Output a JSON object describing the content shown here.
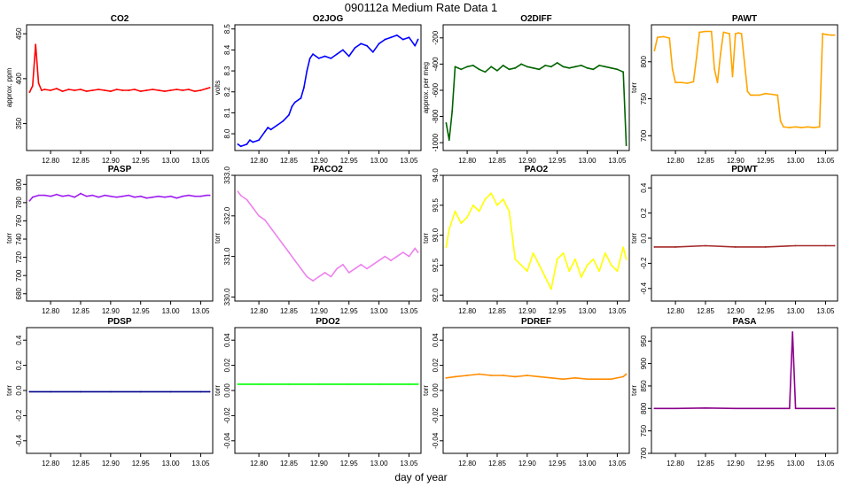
{
  "figure": {
    "title": "090112a   Medium Rate Data 1",
    "xlabel": "day of year"
  },
  "chart_data": [
    {
      "type": "line",
      "title": "CO2",
      "ylabel": "approx. ppm",
      "color": "#ff0000",
      "xlim": [
        12.76,
        13.07
      ],
      "ylim": [
        320,
        460
      ],
      "xticks": [
        "12.80",
        "12.85",
        "12.90",
        "12.95",
        "13.00",
        "13.05"
      ],
      "yticks": [
        "350",
        "400",
        "450"
      ],
      "x": [
        12.765,
        12.77,
        12.775,
        12.78,
        12.785,
        12.79,
        12.8,
        12.81,
        12.82,
        12.83,
        12.84,
        12.85,
        12.86,
        12.87,
        12.88,
        12.89,
        12.9,
        12.91,
        12.92,
        12.93,
        12.94,
        12.95,
        12.96,
        12.97,
        12.98,
        12.99,
        13.0,
        13.01,
        13.02,
        13.03,
        13.04,
        13.05,
        13.06,
        13.065
      ],
      "y": [
        385,
        392,
        438,
        395,
        387,
        388,
        387,
        389,
        386,
        388,
        387,
        388,
        386,
        387,
        388,
        387,
        386,
        388,
        387,
        387,
        388,
        386,
        387,
        388,
        387,
        386,
        387,
        388,
        387,
        388,
        386,
        387,
        389,
        390
      ]
    },
    {
      "type": "line",
      "title": "O2JOG",
      "ylabel": "volts",
      "color": "#0000ff",
      "xlim": [
        12.76,
        13.07
      ],
      "ylim": [
        7.92,
        8.52
      ],
      "xticks": [
        "12.80",
        "12.85",
        "12.90",
        "12.95",
        "13.00",
        "13.05"
      ],
      "yticks": [
        "8.0",
        "8.1",
        "8.2",
        "8.3",
        "8.4",
        "8.5"
      ],
      "x": [
        12.765,
        12.77,
        12.78,
        12.785,
        12.79,
        12.8,
        12.81,
        12.815,
        12.82,
        12.83,
        12.84,
        12.85,
        12.855,
        12.86,
        12.87,
        12.875,
        12.88,
        12.885,
        12.89,
        12.9,
        12.91,
        12.92,
        12.93,
        12.94,
        12.95,
        12.96,
        12.97,
        12.98,
        12.99,
        13.0,
        13.01,
        13.02,
        13.03,
        13.04,
        13.05,
        13.06,
        13.065
      ],
      "y": [
        7.95,
        7.94,
        7.95,
        7.97,
        7.96,
        7.97,
        8.01,
        8.03,
        8.02,
        8.04,
        8.06,
        8.09,
        8.13,
        8.15,
        8.17,
        8.22,
        8.3,
        8.36,
        8.38,
        8.36,
        8.37,
        8.36,
        8.38,
        8.4,
        8.37,
        8.41,
        8.43,
        8.42,
        8.39,
        8.43,
        8.45,
        8.46,
        8.47,
        8.45,
        8.46,
        8.42,
        8.45
      ]
    },
    {
      "type": "line",
      "title": "O2DIFF",
      "ylabel": "approx. per meg",
      "color": "#006400",
      "xlim": [
        12.76,
        13.07
      ],
      "ylim": [
        -1060,
        -100
      ],
      "xticks": [
        "12.80",
        "12.85",
        "12.90",
        "12.95",
        "13.00",
        "13.05"
      ],
      "yticks": [
        "-1000",
        "-800",
        "-600",
        "-400",
        "-200"
      ],
      "x": [
        12.765,
        12.77,
        12.775,
        12.78,
        12.785,
        12.79,
        12.8,
        12.81,
        12.82,
        12.83,
        12.84,
        12.85,
        12.86,
        12.87,
        12.88,
        12.89,
        12.9,
        12.91,
        12.92,
        12.93,
        12.94,
        12.95,
        12.96,
        12.97,
        12.98,
        12.99,
        13.0,
        13.01,
        13.02,
        13.03,
        13.04,
        13.05,
        13.06,
        13.065
      ],
      "y": [
        -850,
        -980,
        -760,
        -420,
        -430,
        -440,
        -420,
        -410,
        -440,
        -460,
        -420,
        -450,
        -410,
        -440,
        -430,
        -400,
        -420,
        -430,
        -440,
        -410,
        -420,
        -390,
        -420,
        -430,
        -420,
        -410,
        -430,
        -440,
        -410,
        -420,
        -430,
        -440,
        -460,
        -1020
      ]
    },
    {
      "type": "line",
      "title": "PAWT",
      "ylabel": "torr",
      "color": "#ffa500",
      "xlim": [
        12.76,
        13.07
      ],
      "ylim": [
        680,
        850
      ],
      "xticks": [
        "12.80",
        "12.85",
        "12.90",
        "12.95",
        "13.00",
        "13.05"
      ],
      "yticks": [
        "700",
        "750",
        "800"
      ],
      "x": [
        12.765,
        12.77,
        12.78,
        12.79,
        12.795,
        12.8,
        12.81,
        12.82,
        12.83,
        12.835,
        12.84,
        12.85,
        12.86,
        12.865,
        12.87,
        12.875,
        12.88,
        12.89,
        12.895,
        12.9,
        12.905,
        12.91,
        12.92,
        12.925,
        12.93,
        12.94,
        12.95,
        12.96,
        12.97,
        12.975,
        12.98,
        12.99,
        13.0,
        13.01,
        13.02,
        13.03,
        13.04,
        13.045,
        13.05,
        13.06,
        13.065
      ],
      "y": [
        815,
        833,
        834,
        832,
        790,
        772,
        772,
        771,
        773,
        805,
        840,
        841,
        841,
        790,
        772,
        810,
        840,
        838,
        780,
        838,
        839,
        838,
        760,
        755,
        755,
        755,
        757,
        756,
        755,
        720,
        712,
        711,
        712,
        711,
        712,
        711,
        712,
        838,
        837,
        836,
        836
      ]
    },
    {
      "type": "line",
      "title": "PASP",
      "ylabel": "torr",
      "color": "#a020f0",
      "xlim": [
        12.76,
        13.07
      ],
      "ylim": [
        672,
        810
      ],
      "xticks": [
        "12.80",
        "12.85",
        "12.90",
        "12.95",
        "13.00",
        "13.05"
      ],
      "yticks": [
        "680",
        "700",
        "720",
        "740",
        "760",
        "780",
        "800"
      ],
      "x": [
        12.765,
        12.77,
        12.78,
        12.79,
        12.8,
        12.81,
        12.82,
        12.83,
        12.84,
        12.85,
        12.86,
        12.87,
        12.88,
        12.89,
        12.9,
        12.91,
        12.92,
        12.93,
        12.94,
        12.95,
        12.96,
        12.97,
        12.98,
        12.99,
        13.0,
        13.01,
        13.02,
        13.03,
        13.04,
        13.05,
        13.06,
        13.065
      ],
      "y": [
        782,
        786,
        788,
        788,
        787,
        789,
        787,
        788,
        786,
        790,
        787,
        788,
        786,
        788,
        787,
        786,
        787,
        788,
        786,
        787,
        785,
        786,
        787,
        786,
        787,
        785,
        787,
        788,
        787,
        787,
        788,
        788
      ]
    },
    {
      "type": "line",
      "title": "PACO2",
      "ylabel": "torr",
      "color": "#ee82ee",
      "xlim": [
        12.76,
        13.07
      ],
      "ylim": [
        329.9,
        333.0
      ],
      "xticks": [
        "12.80",
        "12.85",
        "12.90",
        "12.95",
        "13.00",
        "13.05"
      ],
      "yticks": [
        "330.0",
        "331.0",
        "332.0",
        "333.0"
      ],
      "x": [
        12.765,
        12.77,
        12.78,
        12.79,
        12.8,
        12.81,
        12.82,
        12.83,
        12.84,
        12.85,
        12.86,
        12.87,
        12.88,
        12.89,
        12.9,
        12.91,
        12.92,
        12.93,
        12.94,
        12.95,
        12.96,
        12.97,
        12.98,
        12.99,
        13.0,
        13.01,
        13.02,
        13.03,
        13.04,
        13.05,
        13.06,
        13.065
      ],
      "y": [
        332.6,
        332.5,
        332.4,
        332.2,
        332.0,
        331.9,
        331.7,
        331.5,
        331.3,
        331.1,
        330.9,
        330.7,
        330.5,
        330.4,
        330.5,
        330.6,
        330.5,
        330.7,
        330.8,
        330.6,
        330.7,
        330.8,
        330.7,
        330.8,
        330.9,
        331.0,
        330.9,
        331.0,
        331.1,
        331.0,
        331.2,
        331.1
      ]
    },
    {
      "type": "line",
      "title": "PAO2",
      "ylabel": "torr",
      "color": "#ffff00",
      "xlim": [
        12.76,
        13.07
      ],
      "ylim": [
        91.9,
        94.0
      ],
      "xticks": [
        "12.80",
        "12.85",
        "12.90",
        "12.95",
        "13.00",
        "13.05"
      ],
      "yticks": [
        "92.0",
        "92.5",
        "93.0",
        "93.5",
        "94.0"
      ],
      "x": [
        12.765,
        12.77,
        12.78,
        12.79,
        12.8,
        12.81,
        12.82,
        12.83,
        12.84,
        12.85,
        12.86,
        12.87,
        12.88,
        12.89,
        12.9,
        12.91,
        12.92,
        12.93,
        12.94,
        12.95,
        12.96,
        12.97,
        12.98,
        12.99,
        13.0,
        13.01,
        13.02,
        13.03,
        13.04,
        13.05,
        13.06,
        13.065
      ],
      "y": [
        92.8,
        93.1,
        93.4,
        93.2,
        93.3,
        93.5,
        93.4,
        93.6,
        93.7,
        93.5,
        93.6,
        93.4,
        92.6,
        92.5,
        92.4,
        92.7,
        92.5,
        92.3,
        92.1,
        92.6,
        92.7,
        92.4,
        92.6,
        92.3,
        92.5,
        92.6,
        92.4,
        92.7,
        92.5,
        92.4,
        92.8,
        92.6
      ]
    },
    {
      "type": "line",
      "title": "PDWT",
      "ylabel": "torr",
      "color": "#a52a2a",
      "xlim": [
        12.76,
        13.07
      ],
      "ylim": [
        -0.5,
        0.5
      ],
      "xticks": [
        "12.80",
        "12.85",
        "12.90",
        "12.95",
        "13.00",
        "13.05"
      ],
      "yticks": [
        "-0.4",
        "-0.2",
        "0.0",
        "0.2",
        "0.4"
      ],
      "x": [
        12.765,
        12.8,
        12.85,
        12.9,
        12.95,
        13.0,
        13.05,
        13.065
      ],
      "y": [
        -0.07,
        -0.07,
        -0.06,
        -0.07,
        -0.07,
        -0.06,
        -0.06,
        -0.06
      ]
    },
    {
      "type": "line",
      "title": "PDSP",
      "ylabel": "torr",
      "color": "#00008b",
      "xlim": [
        12.76,
        13.07
      ],
      "ylim": [
        -0.5,
        0.5
      ],
      "xticks": [
        "12.80",
        "12.85",
        "12.90",
        "12.95",
        "13.00",
        "13.05"
      ],
      "yticks": [
        "-0.4",
        "-0.2",
        "0.0",
        "0.2",
        "0.4"
      ],
      "x": [
        12.765,
        12.8,
        12.85,
        12.9,
        12.95,
        13.0,
        13.05,
        13.065
      ],
      "y": [
        -0.01,
        -0.01,
        -0.01,
        -0.01,
        -0.01,
        -0.01,
        -0.01,
        -0.01
      ]
    },
    {
      "type": "line",
      "title": "PDO2",
      "ylabel": "torr",
      "color": "#00ff00",
      "xlim": [
        12.76,
        13.07
      ],
      "ylim": [
        -0.05,
        0.05
      ],
      "xticks": [
        "12.80",
        "12.85",
        "12.90",
        "12.95",
        "13.00",
        "13.05"
      ],
      "yticks": [
        "-0.04",
        "-0.02",
        "0.00",
        "0.02",
        "0.04"
      ],
      "x": [
        12.765,
        12.8,
        12.85,
        12.9,
        12.95,
        13.0,
        13.05,
        13.065
      ],
      "y": [
        0.005,
        0.005,
        0.005,
        0.005,
        0.005,
        0.005,
        0.005,
        0.005
      ]
    },
    {
      "type": "line",
      "title": "PDREF",
      "ylabel": "torr",
      "color": "#ff8c00",
      "xlim": [
        12.76,
        13.07
      ],
      "ylim": [
        -0.05,
        0.05
      ],
      "xticks": [
        "12.80",
        "12.85",
        "12.90",
        "12.95",
        "13.00",
        "13.05"
      ],
      "yticks": [
        "-0.04",
        "-0.02",
        "0.00",
        "0.02",
        "0.04"
      ],
      "x": [
        12.765,
        12.78,
        12.8,
        12.82,
        12.84,
        12.86,
        12.88,
        12.9,
        12.92,
        12.94,
        12.96,
        12.98,
        13.0,
        13.02,
        13.04,
        13.06,
        13.065
      ],
      "y": [
        0.01,
        0.011,
        0.012,
        0.013,
        0.012,
        0.012,
        0.011,
        0.012,
        0.011,
        0.01,
        0.009,
        0.01,
        0.009,
        0.009,
        0.009,
        0.011,
        0.013
      ]
    },
    {
      "type": "line",
      "title": "PASA",
      "ylabel": "torr",
      "color": "#8b008b",
      "xlim": [
        12.76,
        13.07
      ],
      "ylim": [
        700,
        980
      ],
      "xticks": [
        "12.80",
        "12.85",
        "12.90",
        "12.95",
        "13.00",
        "13.05"
      ],
      "yticks": [
        "700",
        "750",
        "800",
        "850",
        "900",
        "950"
      ],
      "x": [
        12.765,
        12.8,
        12.85,
        12.9,
        12.95,
        12.99,
        12.995,
        13.0,
        13.05,
        13.065
      ],
      "y": [
        800,
        800,
        801,
        800,
        800,
        800,
        970,
        800,
        800,
        800
      ]
    }
  ]
}
